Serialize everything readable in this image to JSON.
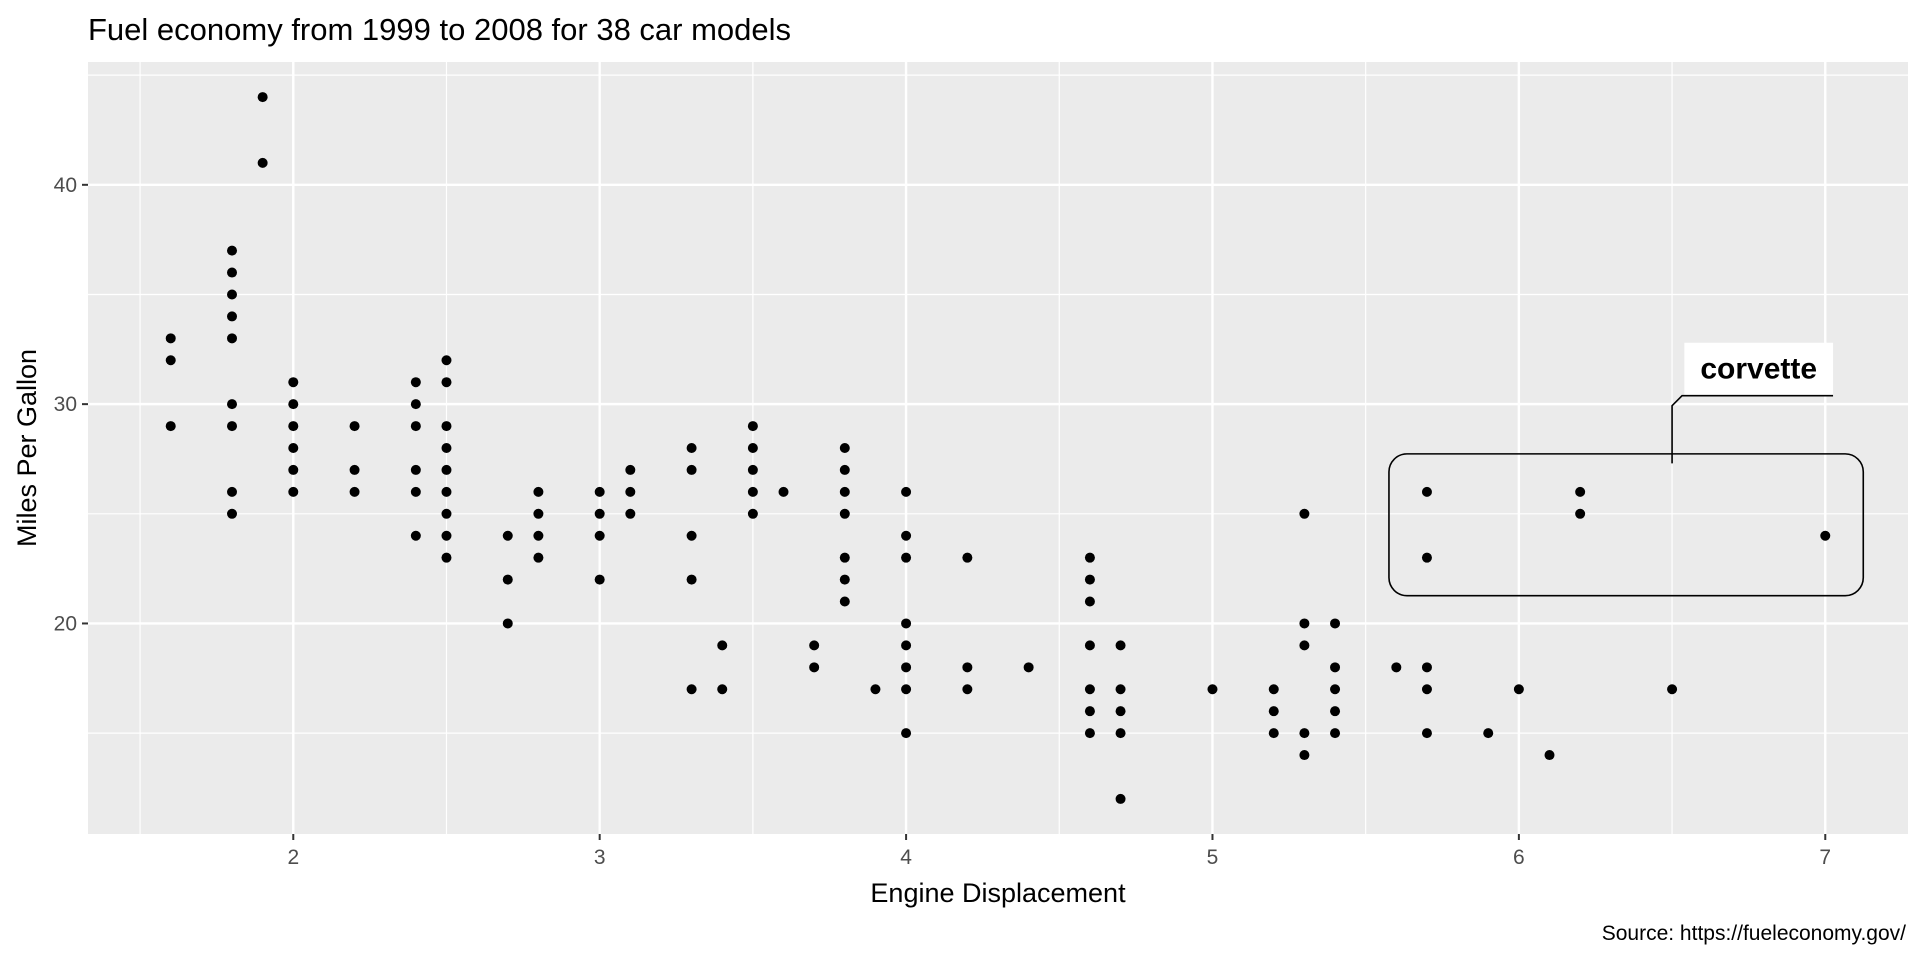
{
  "chart_data": {
    "type": "scatter",
    "title": "Fuel economy from 1999 to 2008 for 38 car models",
    "xlabel": "Engine Displacement",
    "ylabel": "Miles Per Gallon",
    "caption": "Source: https://fueleconomy.gov/",
    "xlim": [
      1.33,
      7.27
    ],
    "ylim": [
      10.4,
      45.6
    ],
    "x_ticks": [
      2,
      3,
      4,
      5,
      6,
      7
    ],
    "y_ticks": [
      20,
      30,
      40
    ],
    "grid": true,
    "point_color": "#000000",
    "panel_background": "#ebebeb",
    "grid_color": "#ffffff",
    "annotation": {
      "label": "corvette",
      "points": [
        [
          5.7,
          26
        ],
        [
          5.7,
          23
        ],
        [
          6.2,
          26
        ],
        [
          6.2,
          25
        ],
        [
          7.0,
          24
        ]
      ]
    },
    "points": [
      [
        1.6,
        33
      ],
      [
        1.6,
        32
      ],
      [
        1.6,
        29
      ],
      [
        1.8,
        37
      ],
      [
        1.8,
        36
      ],
      [
        1.8,
        35
      ],
      [
        1.8,
        34
      ],
      [
        1.8,
        33
      ],
      [
        1.8,
        30
      ],
      [
        1.8,
        29
      ],
      [
        1.8,
        26
      ],
      [
        1.8,
        25
      ],
      [
        1.9,
        44
      ],
      [
        1.9,
        41
      ],
      [
        2.0,
        31
      ],
      [
        2.0,
        30
      ],
      [
        2.0,
        29
      ],
      [
        2.0,
        28
      ],
      [
        2.0,
        27
      ],
      [
        2.0,
        26
      ],
      [
        2.2,
        29
      ],
      [
        2.2,
        27
      ],
      [
        2.2,
        26
      ],
      [
        2.4,
        31
      ],
      [
        2.4,
        30
      ],
      [
        2.4,
        29
      ],
      [
        2.4,
        27
      ],
      [
        2.4,
        26
      ],
      [
        2.4,
        24
      ],
      [
        2.5,
        32
      ],
      [
        2.5,
        31
      ],
      [
        2.5,
        29
      ],
      [
        2.5,
        28
      ],
      [
        2.5,
        27
      ],
      [
        2.5,
        26
      ],
      [
        2.5,
        25
      ],
      [
        2.5,
        24
      ],
      [
        2.5,
        23
      ],
      [
        2.7,
        24
      ],
      [
        2.7,
        22
      ],
      [
        2.7,
        20
      ],
      [
        2.8,
        26
      ],
      [
        2.8,
        25
      ],
      [
        2.8,
        24
      ],
      [
        2.8,
        23
      ],
      [
        3.0,
        26
      ],
      [
        3.0,
        25
      ],
      [
        3.0,
        24
      ],
      [
        3.0,
        22
      ],
      [
        3.1,
        27
      ],
      [
        3.1,
        26
      ],
      [
        3.1,
        25
      ],
      [
        3.3,
        28
      ],
      [
        3.3,
        27
      ],
      [
        3.3,
        24
      ],
      [
        3.3,
        22
      ],
      [
        3.3,
        17
      ],
      [
        3.4,
        19
      ],
      [
        3.4,
        17
      ],
      [
        3.5,
        29
      ],
      [
        3.5,
        28
      ],
      [
        3.5,
        27
      ],
      [
        3.5,
        26
      ],
      [
        3.5,
        25
      ],
      [
        3.6,
        26
      ],
      [
        3.7,
        19
      ],
      [
        3.7,
        18
      ],
      [
        3.8,
        28
      ],
      [
        3.8,
        27
      ],
      [
        3.8,
        26
      ],
      [
        3.8,
        25
      ],
      [
        3.8,
        23
      ],
      [
        3.8,
        22
      ],
      [
        3.8,
        21
      ],
      [
        3.9,
        17
      ],
      [
        4.0,
        26
      ],
      [
        4.0,
        24
      ],
      [
        4.0,
        23
      ],
      [
        4.0,
        20
      ],
      [
        4.0,
        19
      ],
      [
        4.0,
        18
      ],
      [
        4.0,
        17
      ],
      [
        4.0,
        15
      ],
      [
        4.2,
        23
      ],
      [
        4.2,
        18
      ],
      [
        4.2,
        17
      ],
      [
        4.4,
        18
      ],
      [
        4.6,
        23
      ],
      [
        4.6,
        22
      ],
      [
        4.6,
        21
      ],
      [
        4.6,
        19
      ],
      [
        4.6,
        17
      ],
      [
        4.6,
        16
      ],
      [
        4.6,
        15
      ],
      [
        4.7,
        19
      ],
      [
        4.7,
        17
      ],
      [
        4.7,
        16
      ],
      [
        4.7,
        15
      ],
      [
        4.7,
        12
      ],
      [
        5.0,
        17
      ],
      [
        5.2,
        17
      ],
      [
        5.2,
        16
      ],
      [
        5.2,
        15
      ],
      [
        5.3,
        25
      ],
      [
        5.3,
        20
      ],
      [
        5.3,
        19
      ],
      [
        5.3,
        15
      ],
      [
        5.3,
        14
      ],
      [
        5.4,
        20
      ],
      [
        5.4,
        18
      ],
      [
        5.4,
        17
      ],
      [
        5.4,
        16
      ],
      [
        5.4,
        15
      ],
      [
        5.6,
        18
      ],
      [
        5.7,
        26
      ],
      [
        5.7,
        23
      ],
      [
        5.7,
        18
      ],
      [
        5.7,
        17
      ],
      [
        5.7,
        15
      ],
      [
        5.9,
        15
      ],
      [
        6.0,
        17
      ],
      [
        6.1,
        14
      ],
      [
        6.2,
        26
      ],
      [
        6.2,
        25
      ],
      [
        6.5,
        17
      ],
      [
        7.0,
        24
      ]
    ]
  }
}
